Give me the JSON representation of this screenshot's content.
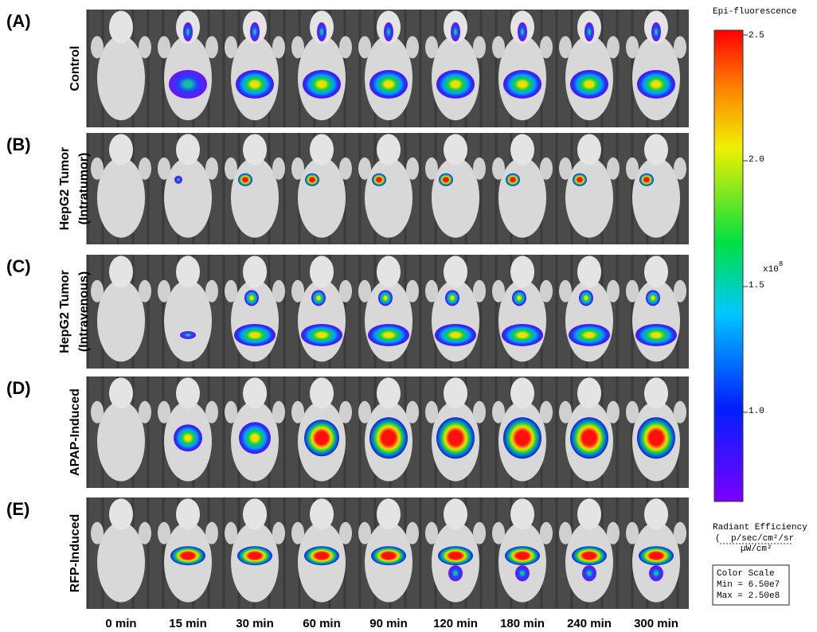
{
  "panels": [
    {
      "letter": "(A)",
      "label": [
        "Control"
      ]
    },
    {
      "letter": "(B)",
      "label": [
        "HepG2 Tumor",
        "(Intratumor)"
      ]
    },
    {
      "letter": "(C)",
      "label": [
        "HepG2 Tumor",
        "(Intravenous)"
      ]
    },
    {
      "letter": "(D)",
      "label": [
        "APAP-Induced"
      ]
    },
    {
      "letter": "(E)",
      "label": [
        "RFP-Induced"
      ]
    }
  ],
  "time_points": [
    "0 min",
    "15 min",
    "30 min",
    "60 min",
    "90 min",
    "120 min",
    "180 min",
    "240 min",
    "300 min"
  ],
  "color_bar": {
    "title": "Epi-fluorescence",
    "ticks": [
      "2.5",
      "2.0",
      "1.5",
      "1.0"
    ],
    "multiplier": "x10",
    "exponent": "8",
    "unit_title": "Radiant Efficiency",
    "unit_numerator": "p/sec/cm²/sr",
    "unit_denominator": "µW/cm²"
  },
  "color_scale": {
    "title": "Color Scale",
    "min": "Min = 6.50e7",
    "max": "Max = 2.50e8"
  }
}
